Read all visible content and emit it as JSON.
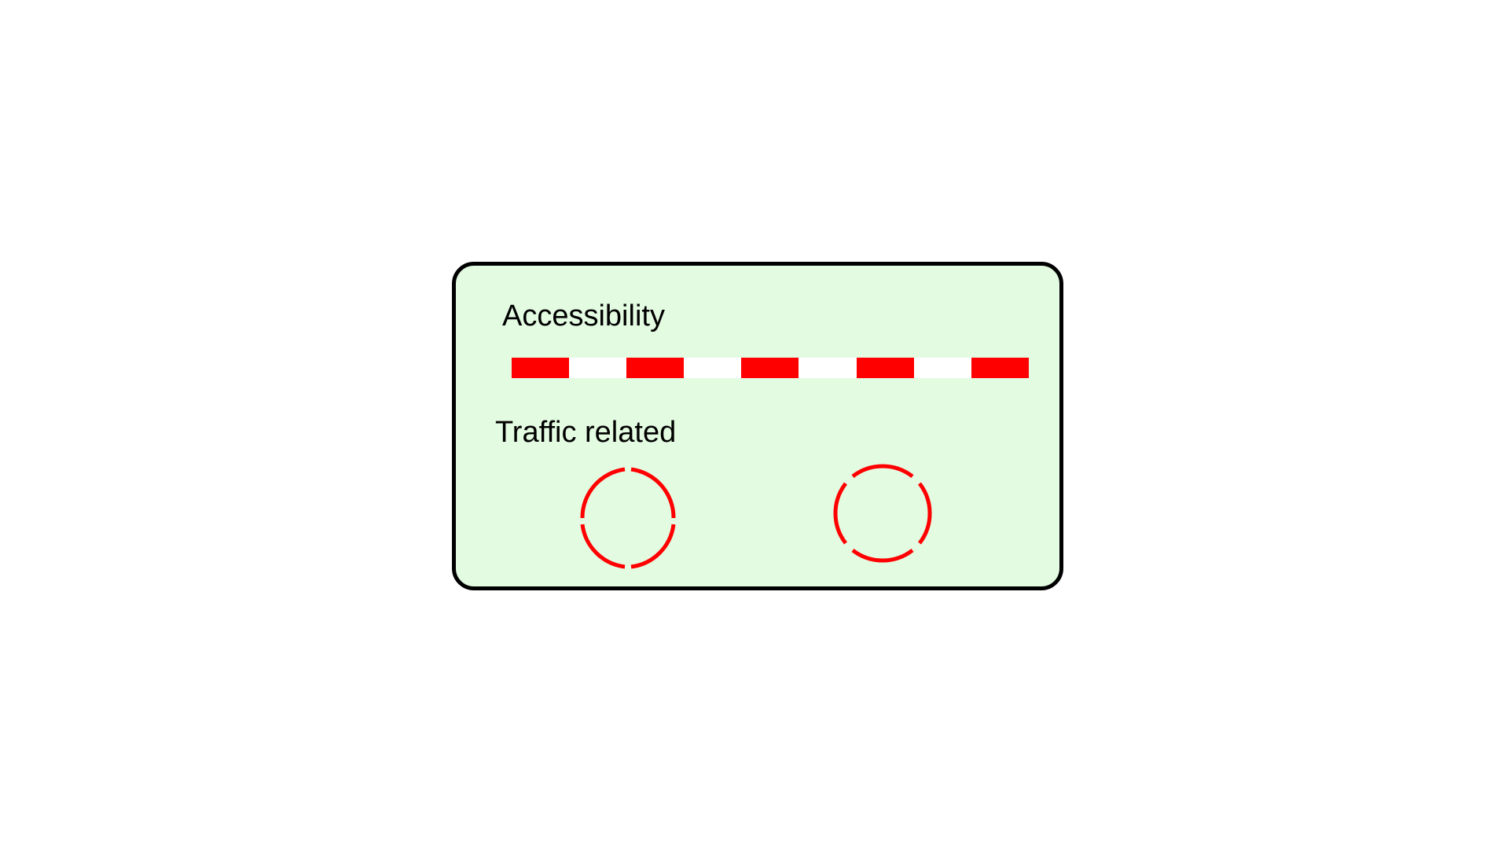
{
  "legend": {
    "accessibility_label": "Accessibility",
    "traffic_label": "Traffic related",
    "accent_color": "#ff0000",
    "background_color": "#e3fbe1",
    "border_color": "#000000"
  },
  "symbols": {
    "accessibility_line": "red-white dashed line",
    "traffic_symbols": [
      "dashed-circle-4-gaps-cardinal",
      "dashed-circle-4-gaps-diagonal"
    ]
  }
}
